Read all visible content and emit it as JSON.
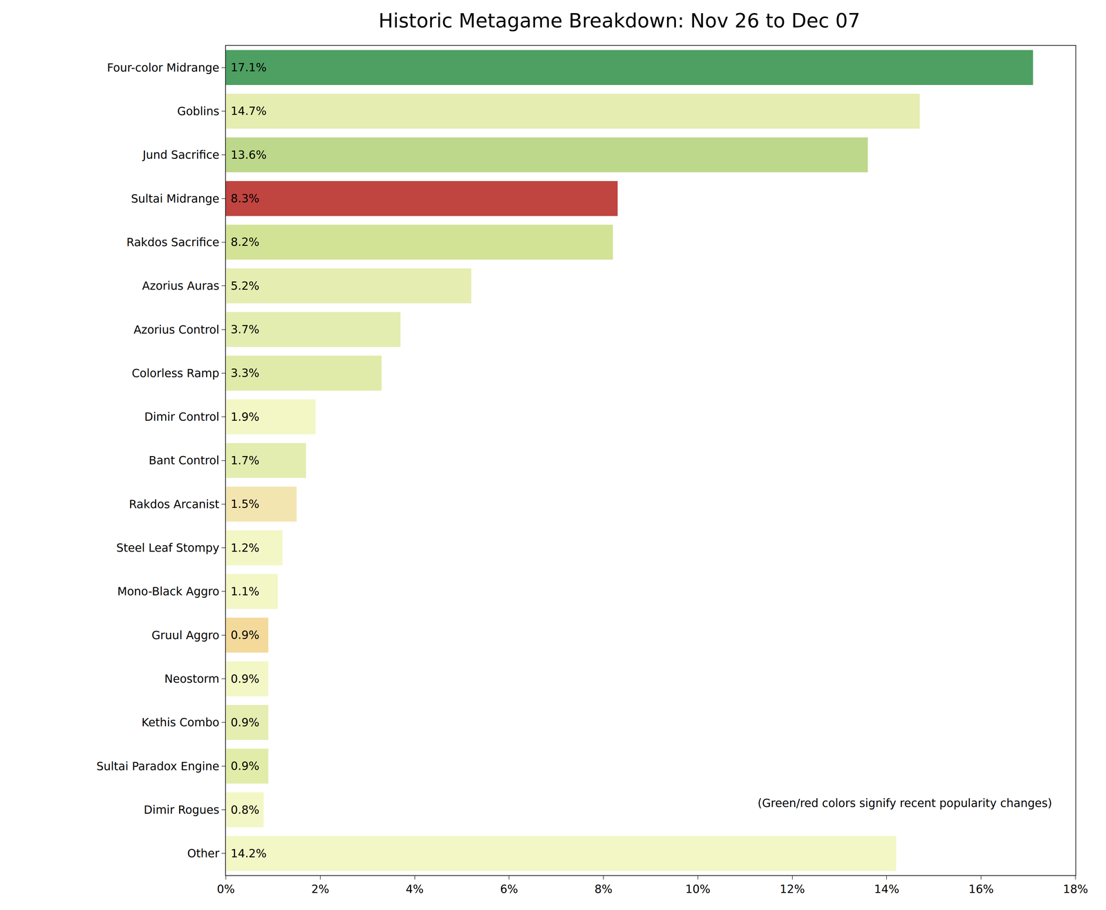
{
  "chart_data": {
    "type": "bar",
    "orientation": "horizontal",
    "title": "Historic Metagame Breakdown: Nov 26 to Dec 07",
    "annotations": [
      "(Green/red colors signify recent popularity changes)"
    ],
    "categories": [
      "Four-color Midrange",
      "Goblins",
      "Jund Sacrifice",
      "Sultai Midrange",
      "Rakdos Sacrifice",
      "Azorius Auras",
      "Azorius Control",
      "Colorless Ramp",
      "Dimir Control",
      "Bant Control",
      "Rakdos Arcanist",
      "Steel Leaf Stompy",
      "Mono-Black Aggro",
      "Gruul Aggro",
      "Neostorm",
      "Kethis Combo",
      "Sultai Paradox Engine",
      "Dimir Rogues",
      "Other"
    ],
    "values": [
      17.1,
      14.7,
      13.6,
      8.3,
      8.2,
      5.2,
      3.7,
      3.3,
      1.9,
      1.7,
      1.5,
      1.2,
      1.1,
      0.9,
      0.9,
      0.9,
      0.9,
      0.8,
      14.2
    ],
    "value_labels": [
      "17.1%",
      "14.7%",
      "13.6%",
      "8.3%",
      "8.2%",
      "5.2%",
      "3.7%",
      "3.3%",
      "1.9%",
      "1.7%",
      "1.5%",
      "1.2%",
      "1.1%",
      "0.9%",
      "0.9%",
      "0.9%",
      "0.9%",
      "0.8%",
      "14.2%"
    ],
    "colors": [
      "#4e9f62",
      "#e5edb0",
      "#bdd88a",
      "#c0443f",
      "#d3e395",
      "#e5edb0",
      "#e3edb0",
      "#e0ebaa",
      "#f3f7c5",
      "#e3edb0",
      "#f3e5b0",
      "#f3f7c5",
      "#f3f7c5",
      "#f3d99a",
      "#f3f7c5",
      "#e5edb0",
      "#e1eca8",
      "#f3f7c5",
      "#f3f7c5"
    ],
    "data_labels": true,
    "xlim": [
      0,
      18
    ],
    "xticks": [
      {
        "value": 0,
        "label": "0%"
      },
      {
        "value": 2,
        "label": "2%"
      },
      {
        "value": 4,
        "label": "4%"
      },
      {
        "value": 6,
        "label": "6%"
      },
      {
        "value": 8,
        "label": "8%"
      },
      {
        "value": 10,
        "label": "10%"
      },
      {
        "value": 12,
        "label": "12%"
      },
      {
        "value": 14,
        "label": "14%"
      },
      {
        "value": 16,
        "label": "16%"
      },
      {
        "value": 18,
        "label": "18%"
      }
    ],
    "grid": false
  }
}
